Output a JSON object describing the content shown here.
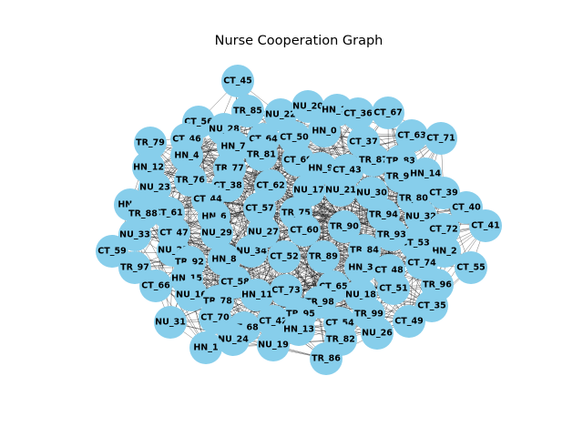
{
  "graph": {
    "title": "Nurse Cooperation Graph",
    "node_color": "#87ceeb",
    "edge_color": "#000000",
    "nodes": [
      "CT_45",
      "TR_85",
      "NU_22",
      "NU_20",
      "HN_10",
      "CT_36",
      "CT_67",
      "CT_56",
      "NU_28",
      "HN_0",
      "CT_63",
      "CT_71",
      "TR_79",
      "CT_46",
      "CT_64",
      "CT_50",
      "CT_37",
      "HN_7",
      "HN_4",
      "TR_81",
      "TR_87",
      "CT_69",
      "HN_9",
      "CT_43",
      "TR_83",
      "HN_12",
      "TR_77",
      "TR_91",
      "HN_14",
      "NU_23",
      "TR_76",
      "CT_38",
      "CT_62",
      "NU_17",
      "NU_21",
      "NU_30",
      "TR_80",
      "CT_39",
      "CT_40",
      "HN_5",
      "CT_44",
      "CT_61",
      "TR_88",
      "HN_6",
      "CT_57",
      "TR_75",
      "TR_94",
      "NU_32",
      "CT_72",
      "CT_41",
      "CT_47",
      "NU_29",
      "CT_60",
      "TR_90",
      "NU_33",
      "CT_53",
      "HN_2",
      "CT_59",
      "NU_25",
      "NU_34",
      "NU_27",
      "TR_84",
      "TR_93",
      "TR_92",
      "HN_8",
      "CT_52",
      "TR_89",
      "HN_3",
      "CT_74",
      "CT_55",
      "TR_97",
      "CT_48",
      "HN_15",
      "CT_58",
      "CT_66",
      "CT_51",
      "TR_96",
      "NU_16",
      "CT_73",
      "CT_65",
      "HN_11",
      "NU_18",
      "TR_78",
      "TR_98",
      "CT_35",
      "CT_70",
      "CT_42",
      "TR_95",
      "TR_99",
      "CT_49",
      "NU_31",
      "HN_13",
      "CT_68",
      "CT_54",
      "NU_26",
      "NU_24",
      "NU_19",
      "TR_82",
      "HN_1",
      "TR_86"
    ]
  }
}
